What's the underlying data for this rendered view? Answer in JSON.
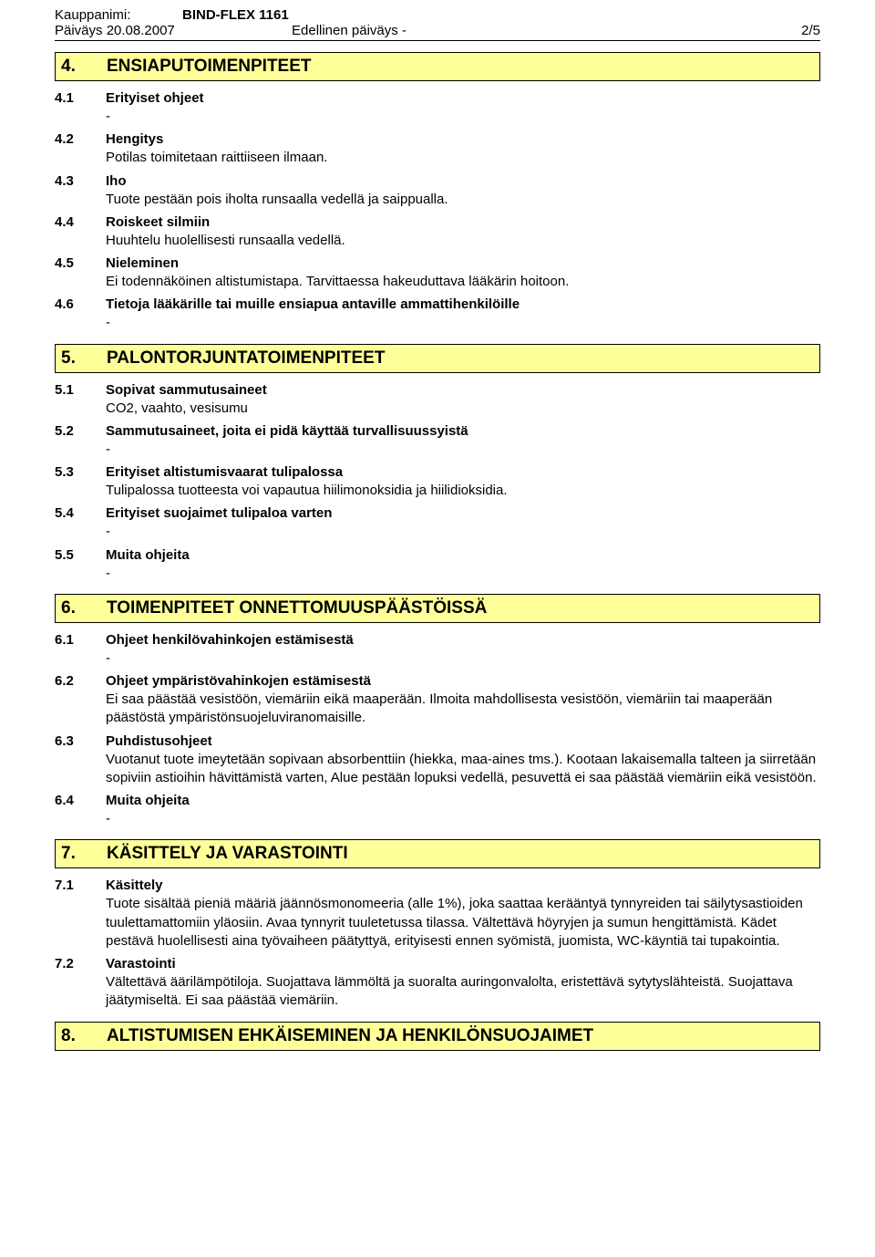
{
  "header": {
    "label_kauppanimi": "Kauppanimi:",
    "kauppanimi": "BIND-FLEX 1161",
    "paivays_label": "Päiväys 20.08.2007",
    "edellinen": "Edellinen päiväys -",
    "page": "2/5"
  },
  "sections": [
    {
      "num": "4.",
      "title": "ENSIAPUTOIMENPITEET",
      "subsections": [
        {
          "num": "4.1",
          "title": "Erityiset ohjeet",
          "body": "-"
        },
        {
          "num": "4.2",
          "title": "Hengitys",
          "body": "Potilas toimitetaan raittiiseen ilmaan."
        },
        {
          "num": "4.3",
          "title": "Iho",
          "body": "Tuote pestään pois iholta runsaalla vedellä ja saippualla."
        },
        {
          "num": "4.4",
          "title": "Roiskeet silmiin",
          "body": "Huuhtelu huolellisesti runsaalla vedellä."
        },
        {
          "num": "4.5",
          "title": "Nieleminen",
          "body": "Ei todennäköinen altistumistapa. Tarvittaessa hakeuduttava lääkärin hoitoon."
        },
        {
          "num": "4.6",
          "title": "Tietoja lääkärille tai muille ensiapua antaville ammattihenkilöille",
          "body": "-"
        }
      ]
    },
    {
      "num": "5.",
      "title": "PALONTORJUNTATOIMENPITEET",
      "subsections": [
        {
          "num": "5.1",
          "title": "Sopivat sammutusaineet",
          "body": "CO2, vaahto, vesisumu"
        },
        {
          "num": "5.2",
          "title": "Sammutusaineet, joita ei pidä käyttää turvallisuussyistä",
          "body": "-"
        },
        {
          "num": "5.3",
          "title": "Erityiset altistumisvaarat tulipalossa",
          "body": "Tulipalossa tuotteesta voi vapautua hiilimonoksidia ja hiilidioksidia."
        },
        {
          "num": "5.4",
          "title": "Erityiset suojaimet tulipaloa varten",
          "body": "-"
        },
        {
          "num": "5.5",
          "title": "Muita ohjeita",
          "body": "-"
        }
      ]
    },
    {
      "num": "6.",
      "title": "TOIMENPITEET ONNETTOMUUSPÄÄSTÖISSÄ",
      "subsections": [
        {
          "num": "6.1",
          "title": "Ohjeet henkilövahinkojen estämisestä",
          "body": "-"
        },
        {
          "num": "6.2",
          "title": "Ohjeet ympäristövahinkojen estämisestä",
          "body": "Ei saa päästää vesistöön, viemäriin eikä maaperään. Ilmoita mahdollisesta vesistöön, viemäriin tai maaperään päästöstä ympäristönsuojeluviranomaisille."
        },
        {
          "num": "6.3",
          "title": "Puhdistusohjeet",
          "body": "Vuotanut tuote imeytetään sopivaan absorbenttiin (hiekka, maa-aines tms.). Kootaan lakaisemalla talteen ja siirretään sopiviin astioihin hävittämistä varten, Alue pestään lopuksi vedellä, pesuvettä ei saa päästää viemäriin eikä vesistöön."
        },
        {
          "num": "6.4",
          "title": "Muita ohjeita",
          "body": "-"
        }
      ]
    },
    {
      "num": "7.",
      "title": "KÄSITTELY JA VARASTOINTI",
      "subsections": [
        {
          "num": "7.1",
          "title": "Käsittely",
          "body": "Tuote sisältää pieniä määriä jäännösmonomeeria (alle 1%), joka saattaa kerääntyä tynnyreiden tai säilytysastioiden tuulettamattomiin yläosiin. Avaa tynnyrit tuuletetussa tilassa. Vältettävä höyryjen ja sumun hengittämistä. Kädet pestävä huolellisesti aina työvaiheen päätyttyä, erityisesti ennen syömistä, juomista, WC-käyntiä tai tupakointia."
        },
        {
          "num": "7.2",
          "title": "Varastointi",
          "body": "Vältettävä äärilämpötiloja. Suojattava lämmöltä ja suoralta auringonvalolta, eristettävä sytytyslähteistä. Suojattava jäätymiseltä. Ei saa päästää viemäriin."
        }
      ]
    },
    {
      "num": "8.",
      "title": "ALTISTUMISEN EHKÄISEMINEN JA HENKILÖNSUOJAIMET",
      "subsections": []
    }
  ]
}
